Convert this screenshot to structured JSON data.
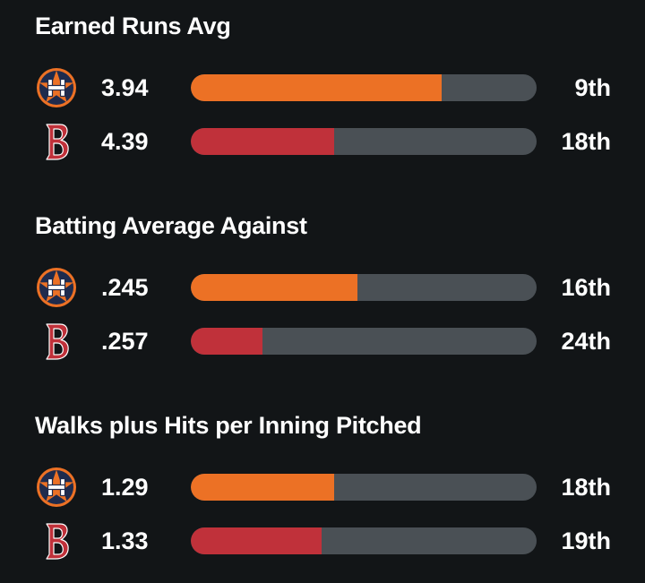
{
  "colors": {
    "background": "#121517",
    "track": "#4a5055",
    "astros": "#ec7125",
    "red_sox": "#c0313a"
  },
  "chart_data": {
    "type": "bar",
    "series_names": [
      "Astros",
      "Red Sox"
    ],
    "metrics": [
      {
        "title": "Earned Runs Avg",
        "rows": [
          {
            "team_icon": "astros-logo-icon",
            "value": "3.94",
            "rank": "9th",
            "fill_fraction": 0.725
          },
          {
            "team_icon": "red-sox-logo-icon",
            "value": "4.39",
            "rank": "18th",
            "fill_fraction": 0.415
          }
        ]
      },
      {
        "title": "Batting Average Against",
        "rows": [
          {
            "team_icon": "astros-logo-icon",
            "value": ".245",
            "rank": "16th",
            "fill_fraction": 0.482
          },
          {
            "team_icon": "red-sox-logo-icon",
            "value": ".257",
            "rank": "24th",
            "fill_fraction": 0.207
          }
        ]
      },
      {
        "title": "Walks plus Hits per Inning Pitched",
        "rows": [
          {
            "team_icon": "astros-logo-icon",
            "value": "1.29",
            "rank": "18th",
            "fill_fraction": 0.415
          },
          {
            "team_icon": "red-sox-logo-icon",
            "value": "1.33",
            "rank": "19th",
            "fill_fraction": 0.378
          }
        ]
      }
    ]
  }
}
